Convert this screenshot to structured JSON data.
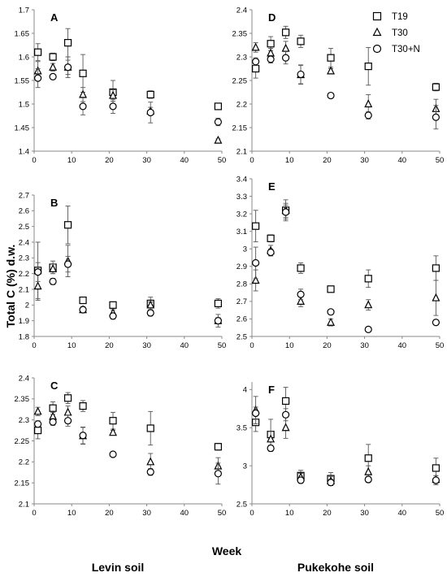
{
  "figure": {
    "ylabel": "Total C (%) d.w.",
    "xlabel": "Week",
    "column_labels": [
      "Levin soil",
      "Pukekohe soil"
    ],
    "legend": [
      {
        "name": "T19",
        "marker": "square"
      },
      {
        "name": "T30",
        "marker": "triangle"
      },
      {
        "name": "T30+N",
        "marker": "circle"
      }
    ]
  },
  "chart_data": [
    {
      "type": "scatter",
      "panel": "A",
      "xlim": [
        0,
        50
      ],
      "ylim": [
        1.4,
        1.7
      ],
      "xticks": [
        "0",
        "10",
        "20",
        "30",
        "40",
        "50"
      ],
      "yticks": [
        "1.4",
        "1.45",
        "1.5",
        "1.55",
        "1.6",
        "1.65",
        "1.7"
      ],
      "series": [
        {
          "name": "T19",
          "x": [
            1,
            5,
            9,
            13,
            21,
            31,
            49
          ],
          "y": [
            1.61,
            1.6,
            1.63,
            1.565,
            1.525,
            1.52,
            1.495
          ],
          "err": [
            0.018,
            0.008,
            0.03,
            0.04,
            0.025,
            0.008,
            0.004
          ]
        },
        {
          "name": "T30",
          "x": [
            1,
            5,
            9,
            13,
            21,
            31,
            49
          ],
          "y": [
            1.57,
            1.578,
            1.578,
            1.52,
            1.518,
            1.485,
            1.423
          ],
          "err": [
            0.02,
            0.008,
            0.015,
            0.015,
            0.012,
            0.008,
            0.003
          ]
        },
        {
          "name": "T30+N",
          "x": [
            1,
            5,
            9,
            13,
            21,
            31,
            49
          ],
          "y": [
            1.555,
            1.558,
            1.578,
            1.495,
            1.495,
            1.482,
            1.462
          ],
          "err": [
            0.02,
            0.004,
            0.022,
            0.018,
            0.015,
            0.022,
            0.008
          ]
        }
      ]
    },
    {
      "type": "scatter",
      "panel": "B",
      "xlim": [
        0,
        50
      ],
      "ylim": [
        1.8,
        2.7
      ],
      "xticks": [
        "0",
        "10",
        "20",
        "30",
        "40",
        "50"
      ],
      "yticks": [
        "1.8",
        "1.9",
        "2",
        "2.1",
        "2.2",
        "2.3",
        "2.4",
        "2.5",
        "2.6",
        "2.7"
      ],
      "series": [
        {
          "name": "T19",
          "x": [
            1,
            5,
            9,
            13,
            21,
            31,
            49
          ],
          "y": [
            2.22,
            2.24,
            2.51,
            2.03,
            2.0,
            2.01,
            2.01
          ],
          "err": [
            0.18,
            0.04,
            0.12,
            0.02,
            0.01,
            0.04,
            0.03
          ]
        },
        {
          "name": "T30",
          "x": [
            1,
            5,
            9,
            13,
            21,
            31,
            49
          ],
          "y": [
            2.12,
            2.23,
            2.28,
            1.97,
            1.95,
            2.0,
            1.9
          ],
          "err": [
            0.09,
            0.03,
            0.1,
            0.02,
            0.02,
            0.02,
            0.02
          ]
        },
        {
          "name": "T30+N",
          "x": [
            1,
            5,
            9,
            13,
            21,
            31,
            49
          ],
          "y": [
            2.21,
            2.15,
            2.26,
            1.97,
            1.93,
            1.95,
            1.9
          ],
          "err": [
            0.06,
            0.02,
            0.05,
            0.02,
            0.02,
            0.02,
            0.04
          ]
        }
      ]
    },
    {
      "type": "scatter",
      "panel": "C",
      "xlim": [
        0,
        50
      ],
      "ylim": [
        2.1,
        2.4
      ],
      "xticks": [
        "0",
        "10",
        "20",
        "30",
        "40",
        "50"
      ],
      "yticks": [
        "2.1",
        "2.15",
        "2.2",
        "2.25",
        "2.3",
        "2.35",
        "2.4"
      ],
      "series": [
        {
          "name": "T19",
          "x": [
            1,
            5,
            9,
            13,
            21,
            31,
            49
          ],
          "y": [
            2.275,
            2.328,
            2.352,
            2.333,
            2.298,
            2.28,
            2.236
          ],
          "err": [
            0.02,
            0.015,
            0.013,
            0.013,
            0.02,
            0.04,
            0.008
          ]
        },
        {
          "name": "T30",
          "x": [
            1,
            5,
            9,
            13,
            21,
            31,
            49
          ],
          "y": [
            2.32,
            2.308,
            2.318,
            2.262,
            2.27,
            2.2,
            2.19
          ],
          "err": [
            0.01,
            0.01,
            0.015,
            0.02,
            0.005,
            0.02,
            0.02
          ]
        },
        {
          "name": "T30+N",
          "x": [
            1,
            5,
            9,
            13,
            21,
            31,
            49
          ],
          "y": [
            2.29,
            2.295,
            2.298,
            2.263,
            2.218,
            2.176,
            2.172
          ],
          "err": [
            0.008,
            0.008,
            0.013,
            0.02,
            0.005,
            0.008,
            0.025
          ]
        }
      ]
    },
    {
      "type": "scatter",
      "panel": "D",
      "xlim": [
        0,
        50
      ],
      "ylim": [
        2.1,
        2.4
      ],
      "xticks": [
        "0",
        "10",
        "20",
        "30",
        "40",
        "50"
      ],
      "yticks": [
        "2.1",
        "2.15",
        "2.2",
        "2.25",
        "2.3",
        "2.35",
        "2.4"
      ],
      "series": [
        {
          "name": "T19",
          "x": [
            1,
            5,
            9,
            13,
            21,
            31,
            49
          ],
          "y": [
            2.275,
            2.328,
            2.352,
            2.333,
            2.298,
            2.28,
            2.236
          ],
          "err": [
            0.02,
            0.015,
            0.013,
            0.013,
            0.02,
            0.04,
            0.008
          ]
        },
        {
          "name": "T30",
          "x": [
            1,
            5,
            9,
            13,
            21,
            31,
            49
          ],
          "y": [
            2.32,
            2.308,
            2.318,
            2.262,
            2.27,
            2.2,
            2.19
          ],
          "err": [
            0.01,
            0.01,
            0.015,
            0.02,
            0.005,
            0.02,
            0.02
          ]
        },
        {
          "name": "T30+N",
          "x": [
            1,
            5,
            9,
            13,
            21,
            31,
            49
          ],
          "y": [
            2.29,
            2.295,
            2.298,
            2.263,
            2.218,
            2.176,
            2.172
          ],
          "err": [
            0.008,
            0.008,
            0.013,
            0.02,
            0.005,
            0.008,
            0.025
          ]
        }
      ]
    },
    {
      "type": "scatter",
      "panel": "E",
      "xlim": [
        0,
        50
      ],
      "ylim": [
        2.5,
        3.4
      ],
      "xticks": [
        "0",
        "10",
        "20",
        "30",
        "40",
        "50"
      ],
      "yticks": [
        "2.5",
        "2.6",
        "2.7",
        "2.8",
        "2.9",
        "3",
        "3.1",
        "3.2",
        "3.3",
        "3.4"
      ],
      "series": [
        {
          "name": "T19",
          "x": [
            1,
            5,
            9,
            13,
            21,
            31,
            49
          ],
          "y": [
            3.13,
            3.06,
            3.22,
            2.89,
            2.77,
            2.83,
            2.89
          ],
          "err": [
            0.09,
            0.02,
            0.06,
            0.03,
            0.01,
            0.05,
            0.07
          ]
        },
        {
          "name": "T30",
          "x": [
            1,
            5,
            9,
            13,
            21,
            31,
            49
          ],
          "y": [
            2.82,
            2.99,
            3.22,
            2.7,
            2.58,
            2.68,
            2.72
          ],
          "err": [
            0.06,
            0.03,
            0.04,
            0.03,
            0.02,
            0.03,
            0.1
          ]
        },
        {
          "name": "T30+N",
          "x": [
            1,
            5,
            9,
            13,
            21,
            31,
            49
          ],
          "y": [
            2.92,
            2.98,
            3.21,
            2.74,
            2.64,
            2.54,
            2.58
          ],
          "err": [
            0.09,
            0.02,
            0.04,
            0.03,
            0.01,
            0.01,
            0.01
          ]
        }
      ]
    },
    {
      "type": "scatter",
      "panel": "F",
      "xlim": [
        0,
        50
      ],
      "ylim": [
        2.5,
        4.1
      ],
      "xticks": [
        "0",
        "10",
        "20",
        "30",
        "40",
        "50"
      ],
      "yticks": [
        "2.5",
        "3",
        "3.5",
        "4"
      ],
      "series": [
        {
          "name": "T19",
          "x": [
            1,
            5,
            9,
            13,
            21,
            31,
            49
          ],
          "y": [
            3.57,
            3.41,
            3.85,
            2.87,
            2.83,
            3.1,
            2.97
          ],
          "err": [
            0.12,
            0.2,
            0.18,
            0.07,
            0.08,
            0.18,
            0.13
          ]
        },
        {
          "name": "T30",
          "x": [
            1,
            5,
            9,
            13,
            21,
            31,
            49
          ],
          "y": [
            3.73,
            3.35,
            3.5,
            2.85,
            2.8,
            2.92,
            2.82
          ],
          "err": [
            0.18,
            0.1,
            0.14,
            0.05,
            0.06,
            0.08,
            0.05
          ]
        },
        {
          "name": "T30+N",
          "x": [
            1,
            5,
            9,
            13,
            21,
            31,
            49
          ],
          "y": [
            3.69,
            3.23,
            3.67,
            2.81,
            2.78,
            2.82,
            2.81
          ],
          "err": [
            0.08,
            0.04,
            0.08,
            0.04,
            0.04,
            0.04,
            0.06
          ]
        }
      ]
    }
  ]
}
